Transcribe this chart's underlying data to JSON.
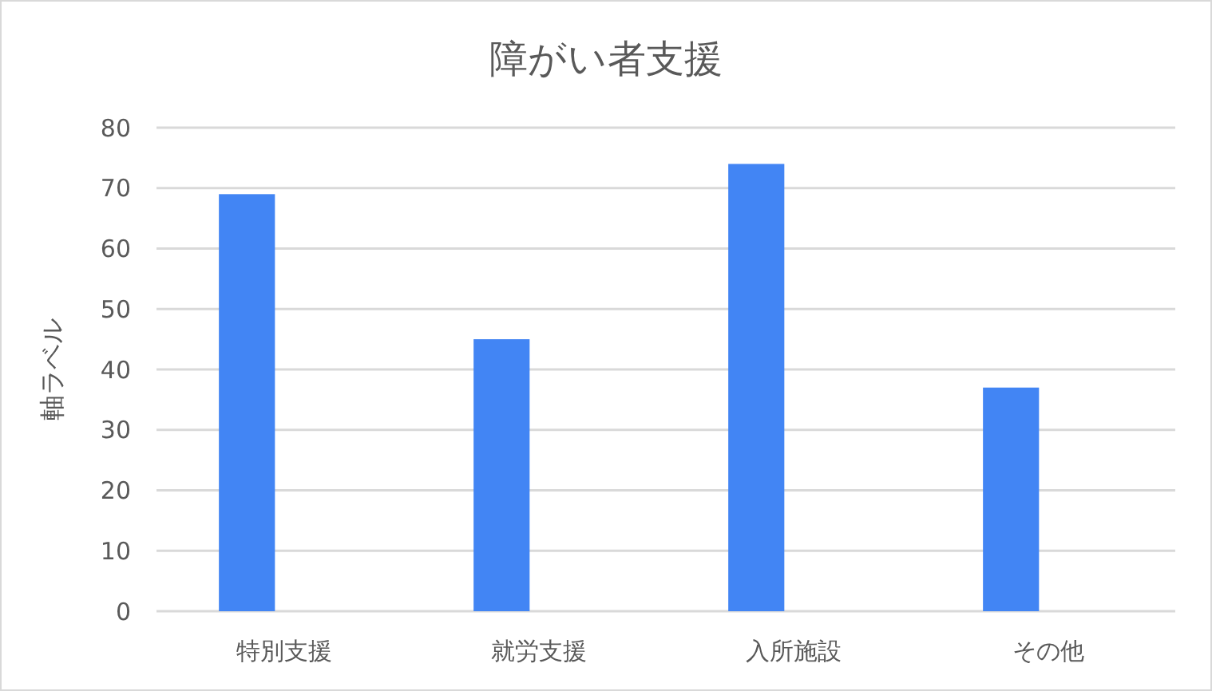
{
  "chart_data": {
    "type": "bar",
    "title": "障がい者支援",
    "ylabel": "軸ラベル",
    "categories": [
      "特別支援",
      "就労支援",
      "入所施設",
      "その他"
    ],
    "values": [
      69,
      45,
      74,
      37
    ],
    "color": "#4285f4",
    "ylim": [
      0,
      80
    ],
    "yticks": [
      0,
      10,
      20,
      30,
      40,
      50,
      60,
      70,
      80
    ],
    "grid": "y"
  }
}
